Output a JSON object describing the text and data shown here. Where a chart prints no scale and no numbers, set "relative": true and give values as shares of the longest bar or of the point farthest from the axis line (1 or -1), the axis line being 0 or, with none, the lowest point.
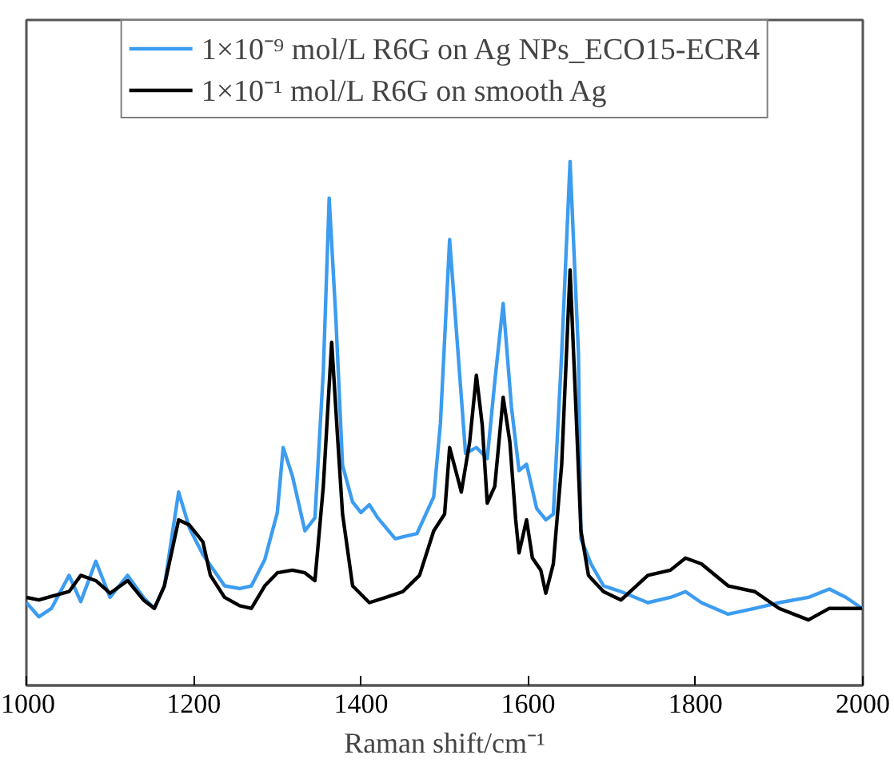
{
  "chart_data": {
    "type": "line",
    "relative": true,
    "xlabel": "Raman shift/cm⁻¹",
    "xlim": [
      1000,
      2000
    ],
    "xticks": [
      1000,
      1200,
      1400,
      1600,
      1800,
      2000
    ],
    "legend": "top",
    "grid": false,
    "tick_labels": "x",
    "line_style": "solid",
    "series": [
      {
        "name": "1×10⁻⁹ mol/L R6G on Ag NPs_ECO15-ECR4",
        "color": "#3c9cf0",
        "x": [
          1000,
          1015,
          1030,
          1051,
          1065,
          1083,
          1100,
          1121,
          1140,
          1153,
          1165,
          1182,
          1195,
          1211,
          1237,
          1255,
          1269,
          1285,
          1300,
          1307,
          1318,
          1333,
          1345,
          1355,
          1362,
          1370,
          1378,
          1390,
          1400,
          1410,
          1420,
          1441,
          1467,
          1487,
          1495,
          1506,
          1525,
          1538,
          1551,
          1560,
          1570,
          1580,
          1589,
          1598,
          1610,
          1621,
          1630,
          1640,
          1650,
          1660,
          1663,
          1675,
          1690,
          1711,
          1743,
          1770,
          1788,
          1807,
          1839,
          1871,
          1900,
          1935,
          1960,
          1980,
          1999
        ],
        "values": [
          0.158,
          0.131,
          0.147,
          0.21,
          0.16,
          0.237,
          0.168,
          0.21,
          0.168,
          0.147,
          0.19,
          0.369,
          0.3,
          0.25,
          0.19,
          0.185,
          0.19,
          0.24,
          0.33,
          0.454,
          0.4,
          0.295,
          0.32,
          0.6,
          0.93,
          0.7,
          0.42,
          0.35,
          0.33,
          0.345,
          0.32,
          0.28,
          0.29,
          0.36,
          0.5,
          0.851,
          0.443,
          0.454,
          0.433,
          0.58,
          0.729,
          0.53,
          0.41,
          0.422,
          0.338,
          0.316,
          0.327,
          0.634,
          1.0,
          0.634,
          0.28,
          0.232,
          0.19,
          0.179,
          0.158,
          0.168,
          0.179,
          0.158,
          0.136,
          0.147,
          0.158,
          0.168,
          0.184,
          0.168,
          0.147
        ]
      },
      {
        "name": "1×10⁻¹ mol/L R6G on smooth Ag",
        "color": "#000000",
        "x": [
          1000,
          1015,
          1030,
          1051,
          1065,
          1083,
          1100,
          1121,
          1140,
          1153,
          1165,
          1182,
          1195,
          1211,
          1220,
          1237,
          1255,
          1269,
          1285,
          1300,
          1318,
          1333,
          1345,
          1355,
          1365,
          1372,
          1378,
          1390,
          1410,
          1430,
          1450,
          1470,
          1487,
          1500,
          1506,
          1515,
          1520,
          1530,
          1538,
          1545,
          1551,
          1560,
          1570,
          1578,
          1585,
          1589,
          1598,
          1605,
          1615,
          1621,
          1630,
          1640,
          1650,
          1657,
          1663,
          1672,
          1690,
          1711,
          1743,
          1770,
          1788,
          1807,
          1839,
          1871,
          1900,
          1935,
          1960,
          1999
        ],
        "values": [
          0.168,
          0.163,
          0.17,
          0.179,
          0.21,
          0.2,
          0.176,
          0.2,
          0.163,
          0.147,
          0.19,
          0.316,
          0.306,
          0.274,
          0.21,
          0.168,
          0.152,
          0.147,
          0.19,
          0.215,
          0.22,
          0.215,
          0.2,
          0.38,
          0.655,
          0.475,
          0.327,
          0.19,
          0.158,
          0.168,
          0.179,
          0.21,
          0.295,
          0.327,
          0.454,
          0.4,
          0.369,
          0.465,
          0.592,
          0.497,
          0.348,
          0.38,
          0.55,
          0.465,
          0.316,
          0.253,
          0.316,
          0.243,
          0.22,
          0.176,
          0.232,
          0.422,
          0.793,
          0.528,
          0.295,
          0.21,
          0.179,
          0.163,
          0.21,
          0.22,
          0.243,
          0.232,
          0.19,
          0.179,
          0.147,
          0.125,
          0.147,
          0.147
        ]
      }
    ]
  }
}
